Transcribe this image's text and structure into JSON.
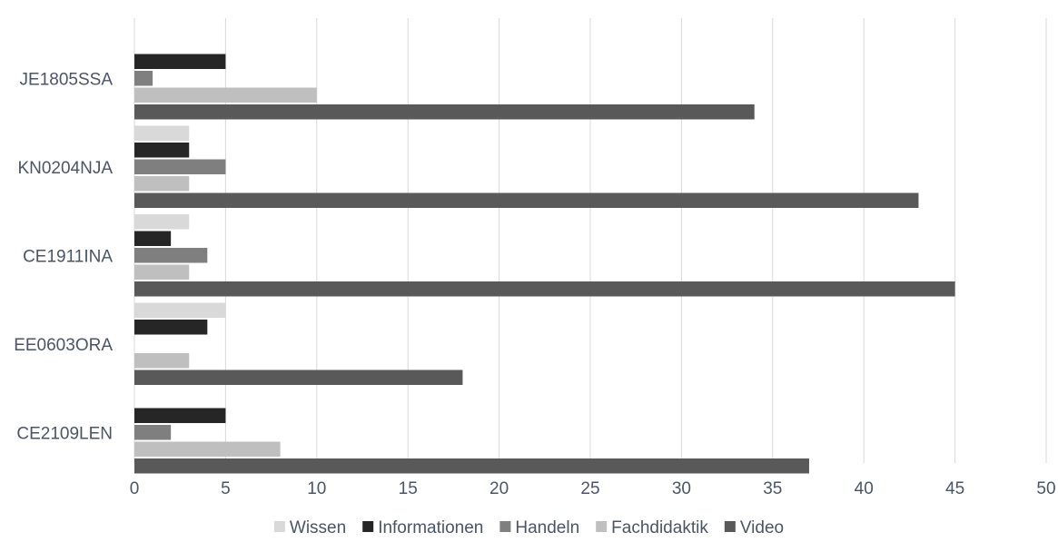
{
  "chart_data": {
    "type": "bar",
    "orientation": "horizontal",
    "title": "",
    "xlabel": "",
    "ylabel": "",
    "xlim": [
      0,
      50
    ],
    "x_ticks": [
      0,
      5,
      10,
      15,
      20,
      25,
      30,
      35,
      40,
      45,
      50
    ],
    "grid": "vertical",
    "legend_position": "bottom",
    "categories": [
      "JE1805SSA",
      "KN0204NJA",
      "CE1911INA",
      "EE0603ORA",
      "CE2109LEN"
    ],
    "series": [
      {
        "name": "Wissen",
        "color": "#d9d9d9",
        "values": [
          0,
          3,
          3,
          5,
          0
        ]
      },
      {
        "name": "Informationen",
        "color": "#262626",
        "values": [
          5,
          3,
          2,
          4,
          5
        ]
      },
      {
        "name": "Handeln",
        "color": "#7f7f7f",
        "values": [
          1,
          5,
          4,
          0,
          2
        ]
      },
      {
        "name": "Fachdidaktik",
        "color": "#bfbfbf",
        "values": [
          10,
          3,
          3,
          3,
          8
        ]
      },
      {
        "name": "Video",
        "color": "#595959",
        "values": [
          34,
          43,
          45,
          18,
          37
        ]
      }
    ]
  }
}
